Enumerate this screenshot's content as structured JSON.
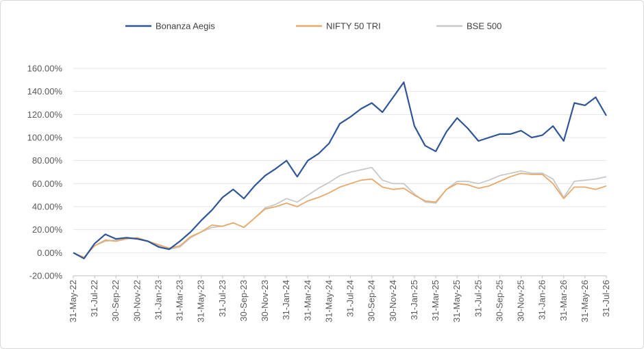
{
  "chart_data": {
    "type": "line",
    "title": "",
    "xlabel": "",
    "ylabel": "",
    "ylim": [
      -20,
      160
    ],
    "yticks": [
      "-20.00%",
      "0.00%",
      "20.00%",
      "40.00%",
      "60.00%",
      "80.00%",
      "100.00%",
      "120.00%",
      "140.00%",
      "160.00%"
    ],
    "ytick_values": [
      -20,
      0,
      20,
      40,
      60,
      80,
      100,
      120,
      140,
      160
    ],
    "xticks": [
      "31-May-22",
      "31-Jul-22",
      "30-Sep-22",
      "30-Nov-22",
      "31-Jan-23",
      "31-Mar-23",
      "31-May-23",
      "31-Jul-23",
      "30-Sep-23",
      "30-Nov-23",
      "31-Jan-24",
      "31-Mar-24",
      "31-May-24",
      "31-Jul-24",
      "30-Sep-24",
      "30-Nov-24",
      "31-Jan-25",
      "31-Mar-25",
      "31-May-25",
      "31-Jul-25",
      "30-Sep-25",
      "30-Nov-25",
      "31-Jan-26",
      "31-Mar-26",
      "31-May-26",
      "31-Jul-26"
    ],
    "grid": "horizontal",
    "legend": "top",
    "x": [
      "31-May-22",
      "30-Jun-22",
      "31-Jul-22",
      "31-Aug-22",
      "30-Sep-22",
      "31-Oct-22",
      "30-Nov-22",
      "31-Dec-22",
      "31-Jan-23",
      "28-Feb-23",
      "31-Mar-23",
      "30-Apr-23",
      "31-May-23",
      "30-Jun-23",
      "31-Jul-23",
      "31-Aug-23",
      "30-Sep-23",
      "31-Oct-23",
      "30-Nov-23",
      "31-Dec-23",
      "31-Jan-24",
      "29-Feb-24",
      "31-Mar-24",
      "30-Apr-24",
      "31-May-24",
      "30-Jun-24",
      "31-Jul-24",
      "31-Aug-24",
      "30-Sep-24",
      "31-Oct-24",
      "30-Nov-24",
      "31-Dec-24",
      "31-Jan-25",
      "28-Feb-25",
      "31-Mar-25",
      "30-Apr-25",
      "31-May-25",
      "30-Jun-25",
      "31-Jul-25",
      "31-Aug-25",
      "30-Sep-25",
      "31-Oct-25",
      "30-Nov-25",
      "31-Dec-25",
      "31-Jan-26",
      "28-Feb-26",
      "31-Mar-26",
      "30-Apr-26",
      "31-May-26",
      "30-Jun-26",
      "31-Jul-26"
    ],
    "series": [
      {
        "name": "Bonanza Aegis",
        "color": "#2f5597",
        "values": [
          0,
          -5,
          8,
          16,
          12,
          13,
          12,
          10,
          5,
          3,
          10,
          18,
          28,
          37,
          48,
          55,
          47,
          58,
          67,
          73,
          80,
          66,
          80,
          86,
          95,
          112,
          118,
          125,
          130,
          122,
          135,
          148,
          110,
          93,
          88,
          105,
          117,
          108,
          97,
          100,
          103,
          103,
          106,
          100,
          102,
          110,
          97,
          130,
          128,
          135,
          119
        ]
      },
      {
        "name": "NIFTY 50 TRI",
        "color": "#e8a96a",
        "values": [
          0,
          -4,
          6,
          11,
          10,
          12,
          13,
          10,
          7,
          4,
          6,
          14,
          18,
          24,
          23,
          26,
          22,
          30,
          38,
          40,
          43,
          40,
          45,
          48,
          52,
          57,
          60,
          63,
          64,
          57,
          55,
          56,
          50,
          45,
          44,
          55,
          60,
          59,
          56,
          58,
          62,
          66,
          69,
          68,
          68,
          60,
          47,
          57,
          57,
          55,
          58
        ]
      },
      {
        "name": "BSE 500",
        "color": "#c8c8c8",
        "values": [
          0,
          -4,
          6,
          10,
          11,
          13,
          12,
          10,
          6,
          3,
          5,
          13,
          18,
          22,
          23,
          26,
          22,
          30,
          39,
          42,
          47,
          44,
          50,
          56,
          61,
          67,
          70,
          72,
          74,
          63,
          60,
          60,
          51,
          44,
          43,
          55,
          62,
          62,
          60,
          63,
          67,
          69,
          71,
          69,
          69,
          64,
          48,
          62,
          63,
          64,
          66
        ]
      }
    ]
  }
}
